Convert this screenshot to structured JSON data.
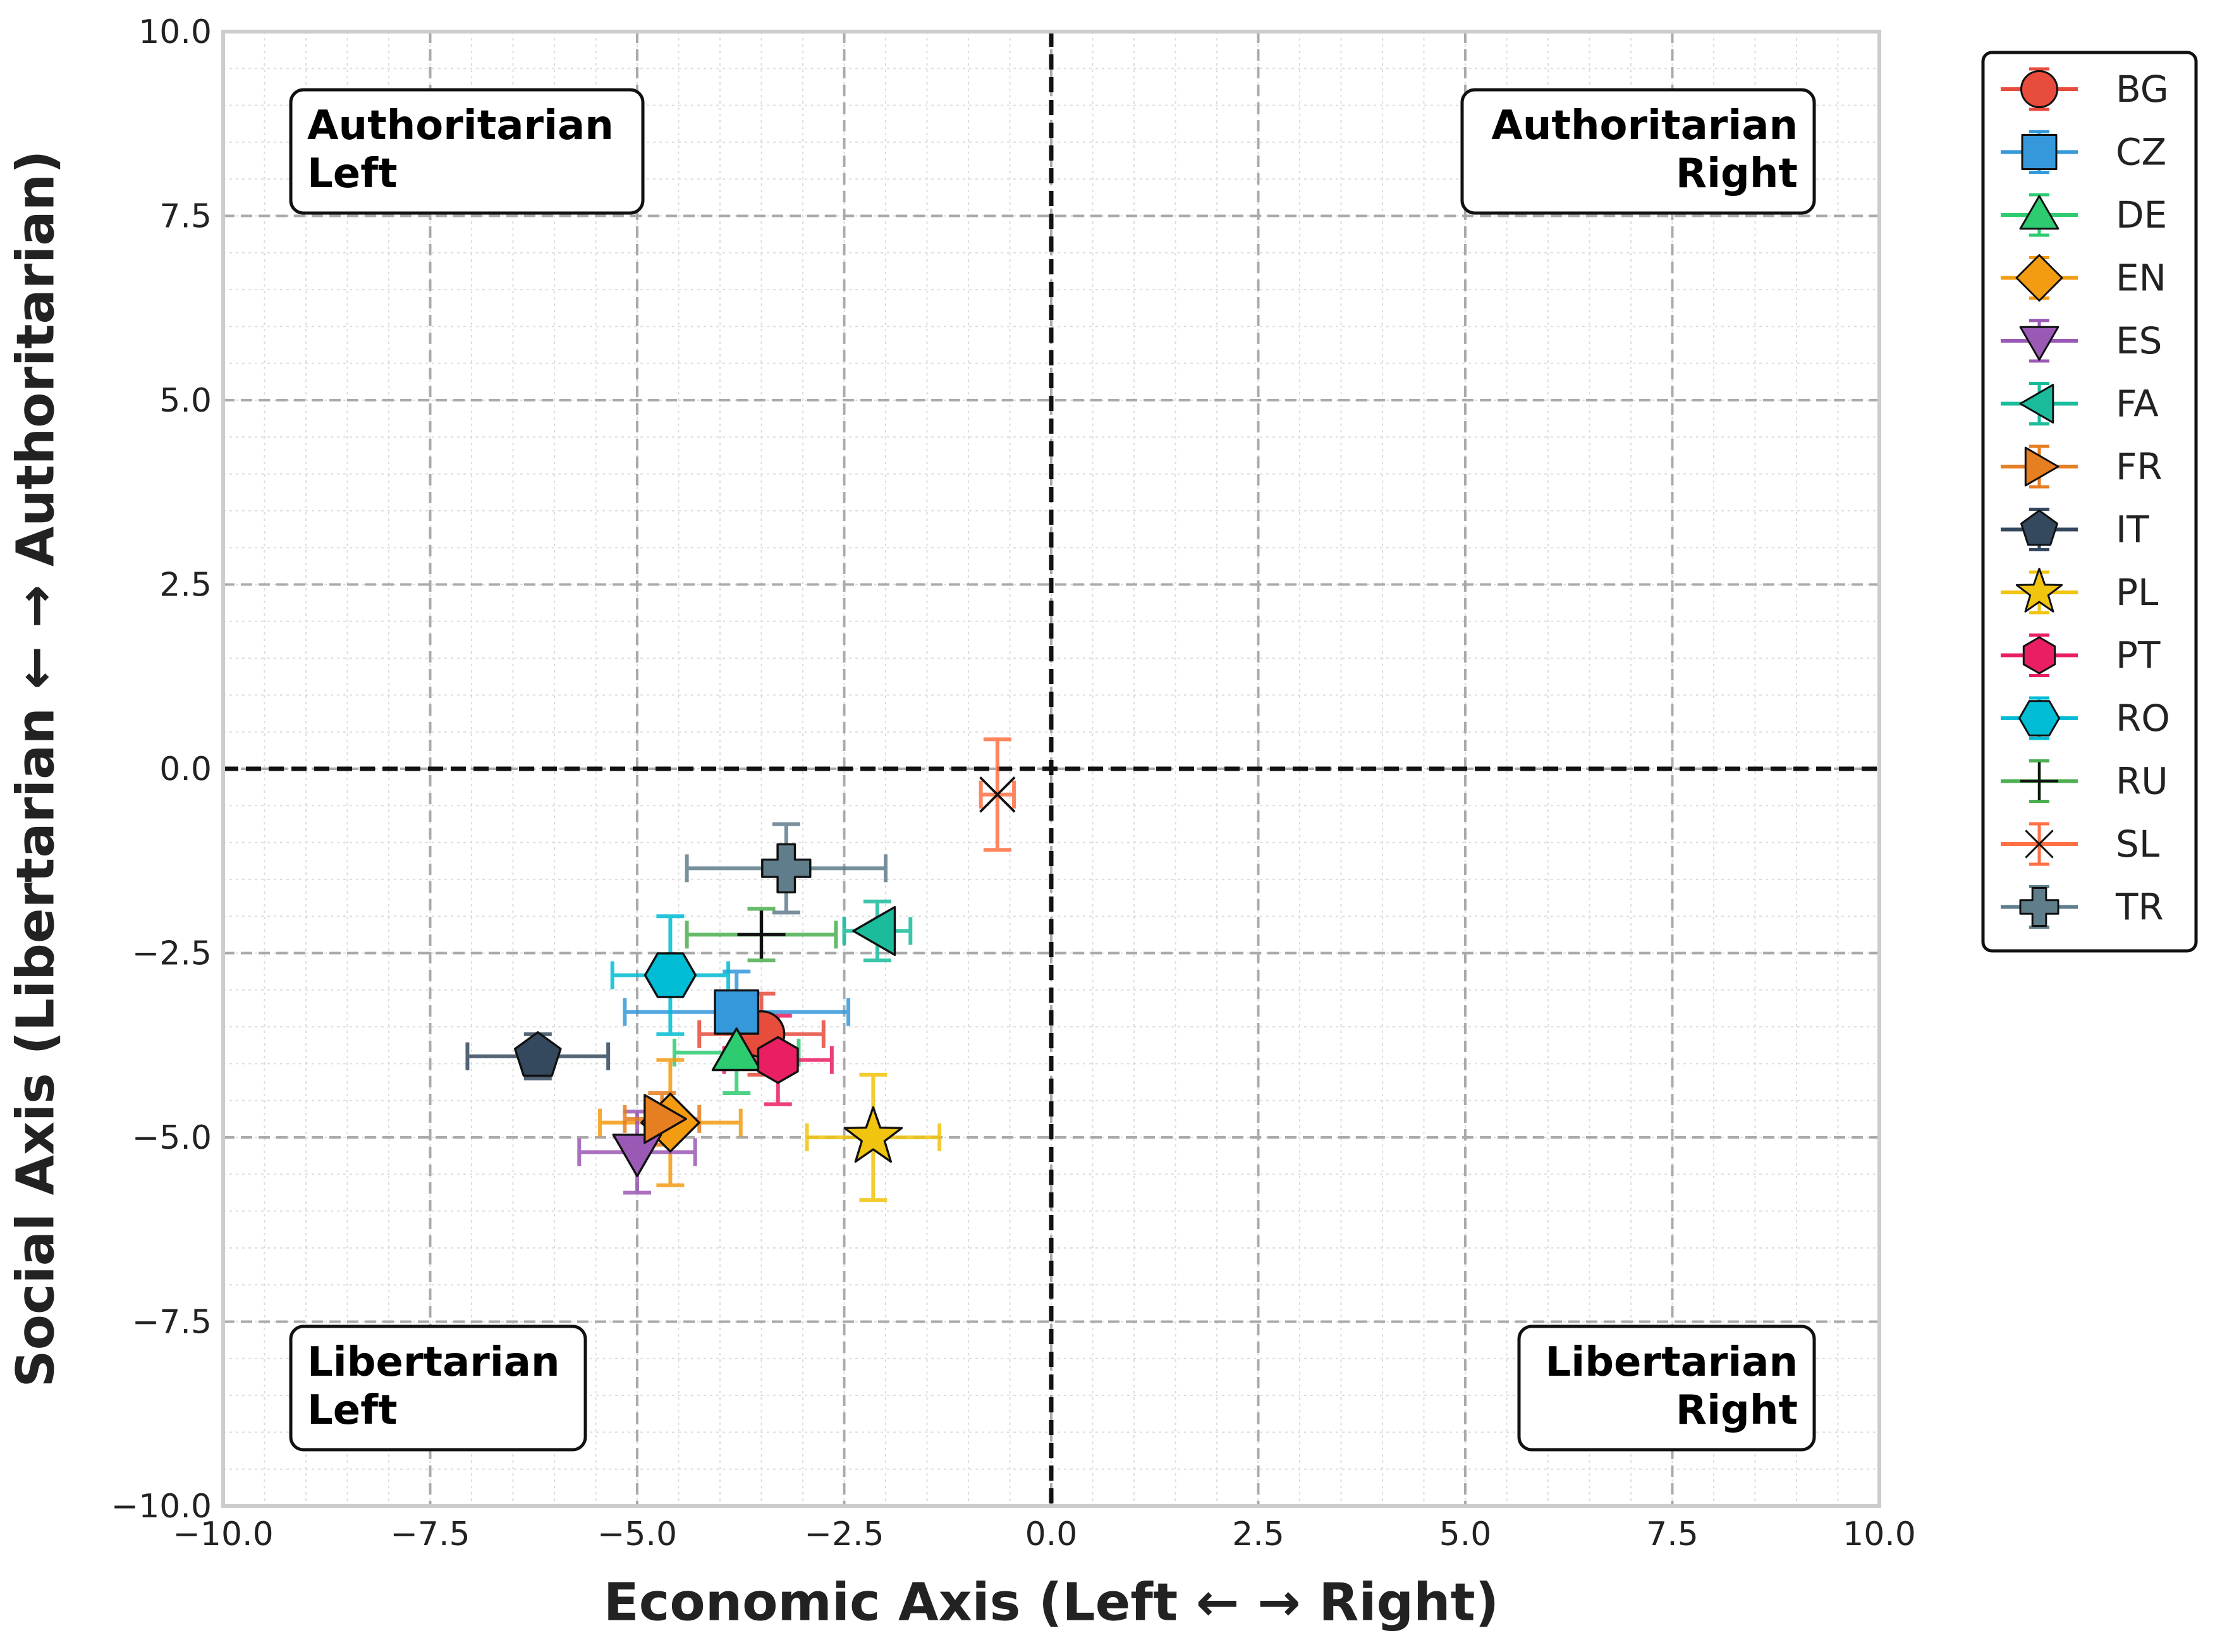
{
  "chart_data": {
    "type": "scatter",
    "xlabel": "Economic Axis (Left ← → Right)",
    "ylabel": "Social Axis (Libertarian ← → Authoritarian)",
    "xlim": [
      -10,
      10
    ],
    "ylim": [
      -10,
      10
    ],
    "xticks": [
      -10,
      -7.5,
      -5,
      -2.5,
      0,
      2.5,
      5,
      7.5,
      10
    ],
    "yticks": [
      -10,
      -7.5,
      -5,
      -2.5,
      0,
      2.5,
      5,
      7.5,
      10
    ],
    "xtick_labels": [
      "−10.0",
      "−7.5",
      "−5.0",
      "−2.5",
      "0.0",
      "2.5",
      "5.0",
      "7.5",
      "10.0"
    ],
    "ytick_labels": [
      "−10.0",
      "−7.5",
      "−5.0",
      "−2.5",
      "0.0",
      "2.5",
      "5.0",
      "7.5",
      "10.0"
    ],
    "grid": true,
    "legend_position": "outside-right",
    "quadrant_labels": {
      "top_left": [
        "Authoritarian",
        "Left"
      ],
      "top_right": [
        "Authoritarian",
        "Right"
      ],
      "bottom_left": [
        "Libertarian",
        "Left"
      ],
      "bottom_right": [
        "Libertarian",
        "Right"
      ]
    },
    "series": [
      {
        "name": "BG",
        "x": -3.5,
        "y": -3.6,
        "xerr": 0.75,
        "yerr": 0.55,
        "color": "#e74c3c",
        "marker": "circle"
      },
      {
        "name": "CZ",
        "x": -3.8,
        "y": -3.3,
        "xerr": 1.35,
        "yerr": 0.55,
        "color": "#3498db",
        "marker": "square"
      },
      {
        "name": "DE",
        "x": -3.8,
        "y": -3.85,
        "xerr": 0.75,
        "yerr": 0.55,
        "color": "#2ecc71",
        "marker": "triangle-up"
      },
      {
        "name": "EN",
        "x": -4.6,
        "y": -4.8,
        "xerr": 0.85,
        "yerr": 0.85,
        "color": "#f39c12",
        "marker": "diamond"
      },
      {
        "name": "ES",
        "x": -5.0,
        "y": -5.2,
        "xerr": 0.7,
        "yerr": 0.55,
        "color": "#9b59b6",
        "marker": "triangle-down"
      },
      {
        "name": "FA",
        "x": -2.1,
        "y": -2.2,
        "xerr": 0.4,
        "yerr": 0.4,
        "color": "#1abc9c",
        "marker": "triangle-left"
      },
      {
        "name": "FR",
        "x": -4.7,
        "y": -4.75,
        "xerr": 0.45,
        "yerr": 0.35,
        "color": "#e67e22",
        "marker": "triangle-right"
      },
      {
        "name": "IT",
        "x": -6.2,
        "y": -3.9,
        "xerr": 0.85,
        "yerr": 0.3,
        "color": "#34495e",
        "marker": "pentagon"
      },
      {
        "name": "PL",
        "x": -2.15,
        "y": -5.0,
        "xerr": 0.8,
        "yerr": 0.85,
        "color": "#f1c40f",
        "marker": "star"
      },
      {
        "name": "PT",
        "x": -3.3,
        "y": -3.95,
        "xerr": 0.65,
        "yerr": 0.6,
        "color": "#e91e63",
        "marker": "hexagon"
      },
      {
        "name": "RO",
        "x": -4.6,
        "y": -2.8,
        "xerr": 0.7,
        "yerr": 0.8,
        "color": "#00bcd4",
        "marker": "hexagon2"
      },
      {
        "name": "RU",
        "x": -3.5,
        "y": -2.25,
        "xerr": 0.9,
        "yerr": 0.35,
        "color": "#4caf50",
        "marker": "plus"
      },
      {
        "name": "SL",
        "x": -0.65,
        "y": -0.35,
        "xerr": 0.2,
        "yerr": 0.75,
        "color": "#ff7043",
        "marker": "x"
      },
      {
        "name": "TR",
        "x": -3.2,
        "y": -1.35,
        "xerr": 1.2,
        "yerr": 0.6,
        "color": "#607d8b",
        "marker": "plus-filled"
      }
    ]
  }
}
